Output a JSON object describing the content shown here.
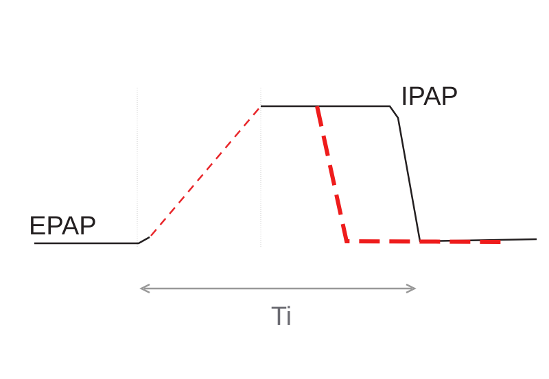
{
  "labels": {
    "epap": "EPAP",
    "ipap": "IPAP",
    "ti": "Ti"
  }
}
